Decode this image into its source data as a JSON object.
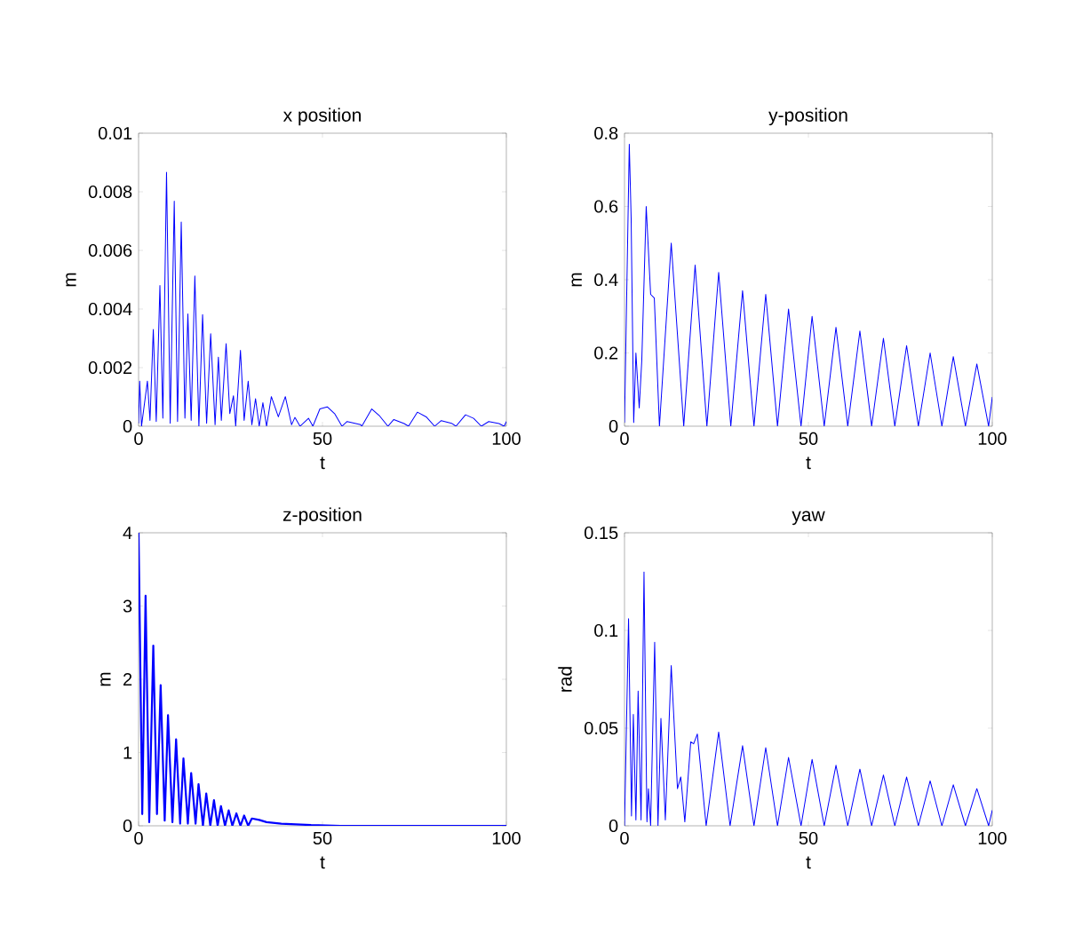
{
  "chart_data": [
    {
      "type": "line",
      "title": "x position",
      "xlabel": "t",
      "ylabel": "m",
      "color": "#0000ff",
      "xlim": [
        0,
        100
      ],
      "ylim": [
        0,
        0.01
      ],
      "xticks": [
        0,
        50,
        100
      ],
      "yticks": [
        0,
        0.002,
        0.004,
        0.006,
        0.008,
        0.01
      ],
      "x": [
        0,
        0.3,
        0.8,
        2.4,
        3.1,
        4.0,
        4.8,
        5.8,
        6.6,
        7.6,
        8.6,
        9.7,
        10.6,
        11.6,
        12.6,
        13.4,
        14.3,
        15.3,
        16.4,
        17.4,
        18.5,
        19.6,
        20.8,
        21.7,
        22.5,
        23.8,
        24.8,
        25.8,
        26.4,
        27.7,
        28.7,
        29.8,
        30.8,
        31.8,
        32.8,
        33.8,
        34.8,
        36.1,
        38.0,
        39.9,
        41.6,
        42.5,
        43.9,
        46.2,
        47.4,
        49.3,
        51.3,
        53.3,
        55.3,
        56.7,
        60.4,
        60.7,
        63.4,
        65.4,
        67.8,
        69.4,
        72.2,
        73.4,
        75.8,
        78.2,
        80.5,
        82.3,
        85.1,
        86.3,
        88.9,
        91.1,
        93.2,
        95.2,
        98.0,
        99.4,
        100
      ],
      "values": [
        0.0001,
        0.00154,
        0,
        0.00154,
        0.0002,
        0.0033,
        0.00016,
        0.0048,
        0.00027,
        0.00867,
        0.0001,
        0.00768,
        0.00016,
        0.00697,
        0.00027,
        0.00383,
        0.0002,
        0.00513,
        0,
        0.00381,
        0.0001,
        0.00316,
        5e-05,
        0.00236,
        0.0002,
        0.00282,
        0.00043,
        0.00104,
        0,
        0.00259,
        0.0002,
        0.00154,
        5e-05,
        0.00094,
        0,
        0.0008,
        0,
        0.00101,
        0.00032,
        0.00101,
        5e-05,
        0.0003,
        0,
        0.00027,
        0,
        0.00059,
        0.00066,
        0.00043,
        0,
        0.00016,
        5e-05,
        0,
        0.00059,
        0.00037,
        0,
        0.00023,
        9e-05,
        0,
        0.00048,
        0.00032,
        0,
        0.00019,
        0.0001,
        0,
        0.00039,
        0.00027,
        0,
        0.00016,
        9e-05,
        0,
        0.00016
      ]
    },
    {
      "type": "line",
      "title": "y-position",
      "xlabel": "t",
      "ylabel": "m",
      "color": "#0000ff",
      "xlim": [
        0,
        100
      ],
      "ylim": [
        0,
        0.8
      ],
      "xticks": [
        0,
        50,
        100
      ],
      "yticks": [
        0,
        0.2,
        0.4,
        0.6,
        0.8
      ],
      "x": [
        0,
        1.3,
        1.8,
        2.5,
        3.1,
        4.0,
        4.7,
        5.9,
        7.1,
        8.1,
        9.5,
        12.7,
        16.1,
        19.2,
        22.4,
        25.6,
        28.9,
        32.1,
        35.2,
        38.4,
        41.6,
        44.6,
        48.0,
        51.0,
        54.3,
        57.5,
        60.7,
        64.0,
        67.2,
        70.4,
        73.5,
        76.7,
        79.9,
        83.1,
        86.3,
        89.4,
        92.7,
        95.8,
        99.0,
        100
      ],
      "values": [
        0.01,
        0.77,
        0.57,
        0.01,
        0.2,
        0.05,
        0.18,
        0.6,
        0.36,
        0.35,
        0,
        0.5,
        0,
        0.44,
        0,
        0.42,
        0,
        0.37,
        0,
        0.36,
        0,
        0.32,
        0,
        0.3,
        0,
        0.27,
        0,
        0.26,
        0,
        0.24,
        0,
        0.22,
        0,
        0.2,
        0,
        0.19,
        0,
        0.17,
        0,
        0.08
      ]
    },
    {
      "type": "line",
      "title": "z-position",
      "xlabel": "t",
      "ylabel": "m",
      "color": "#0000ff",
      "xlim": [
        0,
        100
      ],
      "ylim": [
        0,
        4
      ],
      "xticks": [
        0,
        50,
        100
      ],
      "yticks": [
        0,
        1,
        2,
        3,
        4
      ],
      "x": [
        0,
        1.0,
        1.9,
        2.9,
        4.0,
        5.0,
        6.0,
        7.1,
        8.0,
        9.2,
        10.2,
        11.3,
        12.2,
        13.4,
        14.3,
        15.5,
        16.3,
        17.5,
        18.4,
        19.5,
        20.5,
        21.5,
        22.4,
        23.5,
        24.5,
        25.5,
        26.6,
        27.7,
        28.7,
        29.8,
        30.8,
        32.8,
        34.8,
        38.8,
        42.8,
        46.9,
        54.9,
        100
      ],
      "values": [
        4,
        0.16,
        3.14,
        0.05,
        2.46,
        0.16,
        1.92,
        0.07,
        1.51,
        0.05,
        1.18,
        0.03,
        0.92,
        0.03,
        0.72,
        0.03,
        0.57,
        0,
        0.44,
        0,
        0.35,
        0,
        0.27,
        0,
        0.21,
        0,
        0.17,
        0,
        0.14,
        0,
        0.1,
        0.08,
        0.05,
        0.03,
        0.02,
        0.01,
        0,
        0
      ]
    },
    {
      "type": "line",
      "title": "yaw",
      "xlabel": "t",
      "ylabel": "rad",
      "color": "#0000ff",
      "xlim": [
        0,
        100
      ],
      "ylim": [
        0,
        0.15
      ],
      "xticks": [
        0,
        50,
        100
      ],
      "yticks": [
        0,
        0.05,
        0.1,
        0.15
      ],
      "x": [
        0,
        1.1,
        1.9,
        2.4,
        3.1,
        3.7,
        4.5,
        5.3,
        6.1,
        6.5,
        7.1,
        8.2,
        9.1,
        9.9,
        11.1,
        12.7,
        14.4,
        15.3,
        16.4,
        18.0,
        18.8,
        19.8,
        22.2,
        25.6,
        28.7,
        32.1,
        35.2,
        38.4,
        41.6,
        44.6,
        48.0,
        51.0,
        54.3,
        57.5,
        60.7,
        64.0,
        67.2,
        70.4,
        73.5,
        76.7,
        79.9,
        83.1,
        86.3,
        89.4,
        92.7,
        95.8,
        99.0,
        100
      ],
      "values": [
        0,
        0.106,
        0.005,
        0.057,
        0.003,
        0.069,
        0.003,
        0.13,
        0.002,
        0.019,
        0,
        0.094,
        0,
        0.055,
        0.003,
        0.082,
        0.019,
        0.025,
        0.002,
        0.043,
        0.042,
        0.047,
        0,
        0.048,
        0,
        0.041,
        0,
        0.04,
        0,
        0.035,
        0,
        0.034,
        0,
        0.031,
        0,
        0.029,
        0,
        0.026,
        0,
        0.025,
        0,
        0.023,
        0,
        0.021,
        0,
        0.019,
        0,
        0.008
      ]
    }
  ]
}
